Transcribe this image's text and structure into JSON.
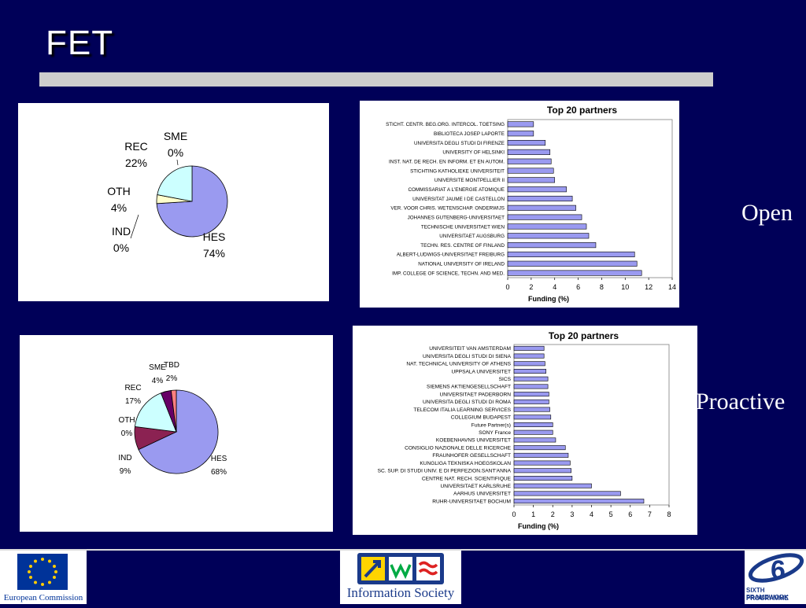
{
  "slide": {
    "title": "FET",
    "label_open": "Open",
    "label_proactive": "Proactive"
  },
  "footer": {
    "ec_label": "European Commission",
    "is_label": "Information Society",
    "fp6_label_1": "SIXTH FRAMEWORK",
    "fp6_label_2": "PROGRAMME"
  },
  "colors": {
    "background": "#000058",
    "bar_fill": "#9a9af0",
    "hes": "#9a9af0",
    "ind": "#8b2252",
    "oth": "#ffffcc",
    "rec": "#ccffff",
    "sme": "#660066",
    "tbd": "#ff8080"
  },
  "chart_data": [
    {
      "type": "pie",
      "slices": [
        {
          "label": "HES",
          "pct_label": "74%",
          "value": 74,
          "color": "#9a9af0"
        },
        {
          "label": "IND",
          "pct_label": "0%",
          "value": 0,
          "color": "#8b2252"
        },
        {
          "label": "OTH",
          "pct_label": "4%",
          "value": 4,
          "color": "#ffffcc"
        },
        {
          "label": "REC",
          "pct_label": "22%",
          "value": 22,
          "color": "#ccffff"
        },
        {
          "label": "SME",
          "pct_label": "0%",
          "value": 0,
          "color": "#660066"
        }
      ]
    },
    {
      "type": "bar",
      "orientation": "horizontal",
      "title": "Top 20 partners",
      "xlabel": "Funding (%)",
      "xlim": [
        0,
        14
      ],
      "xticks": [
        "0",
        "2",
        "4",
        "6",
        "8",
        "10",
        "12",
        "14"
      ],
      "categories": [
        "STICHT. CENTR. BEG.ORG. INTERCOL. TOETSING",
        "BIBLIOTECA JOSEP LAPORTE",
        "UNIVERSITA DEGLI STUDI DI FIRENZE",
        "UNIVERSITY OF HELSINKI",
        "INST. NAT. DE RECH. EN INFORM. ET EN AUTOM.",
        "STICHTING KATHOLIEKE UNIVERSITEIT",
        "UNIVERSITE MONTPELLIER II",
        "COMMISSARIAT A L'ENERGIE ATOMIQUE",
        "UNIVERSITAT JAUME I DE CASTELLON",
        "VER. VOOR CHRIS. WETENSCHAP. ONDERWIJS",
        "JOHANNES GUTENBERG-UNIVERSITAET",
        "TECHNISCHE UNIVERSITAET WIEN",
        "UNIVERSITAET AUGSBURG",
        "TECHN. RES. CENTRE OF FINLAND",
        "ALBERT-LUDWIGS-UNIVERSITAET FREIBURG",
        "NATIONAL UNIVERSITY OF IRELAND",
        "IMP. COLLEGE OF SCIENCE, TECHN. AND MED."
      ],
      "values": [
        2.2,
        2.2,
        3.2,
        3.6,
        3.7,
        3.9,
        4.0,
        5.0,
        5.5,
        5.8,
        6.3,
        6.7,
        6.9,
        7.5,
        10.8,
        11.0,
        11.4
      ]
    },
    {
      "type": "pie",
      "slices": [
        {
          "label": "HES",
          "pct_label": "68%",
          "value": 68,
          "color": "#9a9af0"
        },
        {
          "label": "IND",
          "pct_label": "9%",
          "value": 9,
          "color": "#8b2252"
        },
        {
          "label": "OTH",
          "pct_label": "0%",
          "value": 0,
          "color": "#ffffcc"
        },
        {
          "label": "REC",
          "pct_label": "17%",
          "value": 17,
          "color": "#ccffff"
        },
        {
          "label": "SME",
          "pct_label": "4%",
          "value": 4,
          "color": "#660066"
        },
        {
          "label": "TBD",
          "pct_label": "2%",
          "value": 2,
          "color": "#ff8080"
        }
      ]
    },
    {
      "type": "bar",
      "orientation": "horizontal",
      "title": "Top 20 partners",
      "xlabel": "Funding (%)",
      "xlim": [
        0,
        8
      ],
      "xticks": [
        "0",
        "1",
        "2",
        "3",
        "4",
        "5",
        "6",
        "7",
        "8"
      ],
      "categories": [
        "UNIVERSITEIT VAN AMSTERDAM",
        "UNIVERSITA DEGLI STUDI DI SIENA",
        "NAT. TECHNICAL UNIVERSITY OF ATHENS",
        "UPPSALA UNIVERSITET",
        "SICS",
        "SIEMENS AKTIENGESELLSCHAFT",
        "UNIVERSITAET PADERBORN",
        "UNIVERSITA DEGLI STUDI DI ROMA",
        "TELECOM ITALIA LEARNING SERVICES",
        "COLLEGIUM BUDAPEST",
        "Future Partner(s)",
        "SONY France",
        "KOEBENHAVNS UNIVERSITET",
        "CONSIGLIO NAZIONALE DELLE RICERCHE",
        "FRAUNHOFER GESELLSCHAFT",
        "KUNGLIGA TEKNISKA HOEGSKOLAN",
        "SC. SUP. DI STUDI UNIV. E DI PERFEZION.SANT'ANNA",
        "CENTRE NAT. RECH. SCIENTIFIQUE",
        "UNIVERSITAET KARLSRUHE",
        "AARHUS UNIVERSITET",
        "RUHR-UNIVERSITAET BOCHUM"
      ],
      "values": [
        1.55,
        1.55,
        1.6,
        1.65,
        1.75,
        1.75,
        1.8,
        1.8,
        1.85,
        1.9,
        2.0,
        2.0,
        2.15,
        2.65,
        2.8,
        2.9,
        2.95,
        3.0,
        4.0,
        5.5,
        6.7
      ]
    }
  ]
}
